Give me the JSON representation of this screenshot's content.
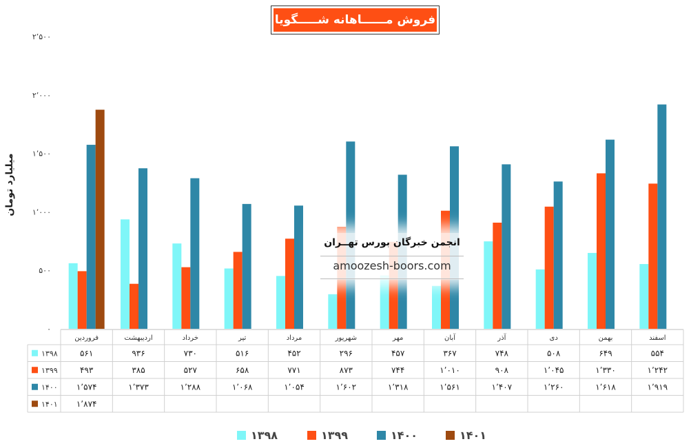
{
  "chart_data": {
    "type": "bar",
    "title": "فروش مــــــاهانه شـــــگویا",
    "ylabel": "میلیارد تومان",
    "ylim": [
      0,
      2500
    ],
    "yticks": [
      "0",
      "500",
      "1,000",
      "1,500",
      "2,000",
      "2,500"
    ],
    "categories": [
      "فروردین",
      "اردیبهشت",
      "خرداد",
      "تیر",
      "مرداد",
      "شهریور",
      "مهر",
      "آبان",
      "آذر",
      "دی",
      "بهمن",
      "اسفند"
    ],
    "series": [
      {
        "name": "1398",
        "color": "#7ff6f8",
        "values": [
          561,
          936,
          730,
          516,
          452,
          296,
          457,
          367,
          748,
          508,
          649,
          554
        ],
        "labels": [
          "561",
          "936",
          "730",
          "516",
          "452",
          "296",
          "457",
          "367",
          "748",
          "508",
          "649",
          "554"
        ]
      },
      {
        "name": "1399",
        "color": "#fe4f14",
        "values": [
          493,
          385,
          527,
          658,
          771,
          873,
          744,
          1010,
          908,
          1045,
          1330,
          1242
        ],
        "labels": [
          "493",
          "385",
          "527",
          "658",
          "771",
          "873",
          "744",
          "1,010",
          "908",
          "1,045",
          "1,330",
          "1,242"
        ]
      },
      {
        "name": "1400",
        "color": "#2e87a7",
        "values": [
          1574,
          1373,
          1288,
          1068,
          1054,
          1602,
          1318,
          1561,
          1407,
          1260,
          1618,
          1919
        ],
        "labels": [
          "1,574",
          "1,373",
          "1,288",
          "1,068",
          "1,054",
          "1,602",
          "1,318",
          "1,561",
          "1,407",
          "1,260",
          "1,618",
          "1,919"
        ]
      },
      {
        "name": "1401",
        "color": "#9e4a10",
        "values": [
          1874,
          null,
          null,
          null,
          null,
          null,
          null,
          null,
          null,
          null,
          null,
          null
        ],
        "labels": [
          "1,874",
          "",
          "",
          "",
          "",
          "",
          "",
          "",
          "",
          "",
          "",
          ""
        ]
      }
    ],
    "grid": false,
    "legend_position": "bottom",
    "data_table": true
  },
  "watermark": {
    "title": "انجمن خبرگان بورس تهــران",
    "site": "amoozesh-boors.com"
  }
}
